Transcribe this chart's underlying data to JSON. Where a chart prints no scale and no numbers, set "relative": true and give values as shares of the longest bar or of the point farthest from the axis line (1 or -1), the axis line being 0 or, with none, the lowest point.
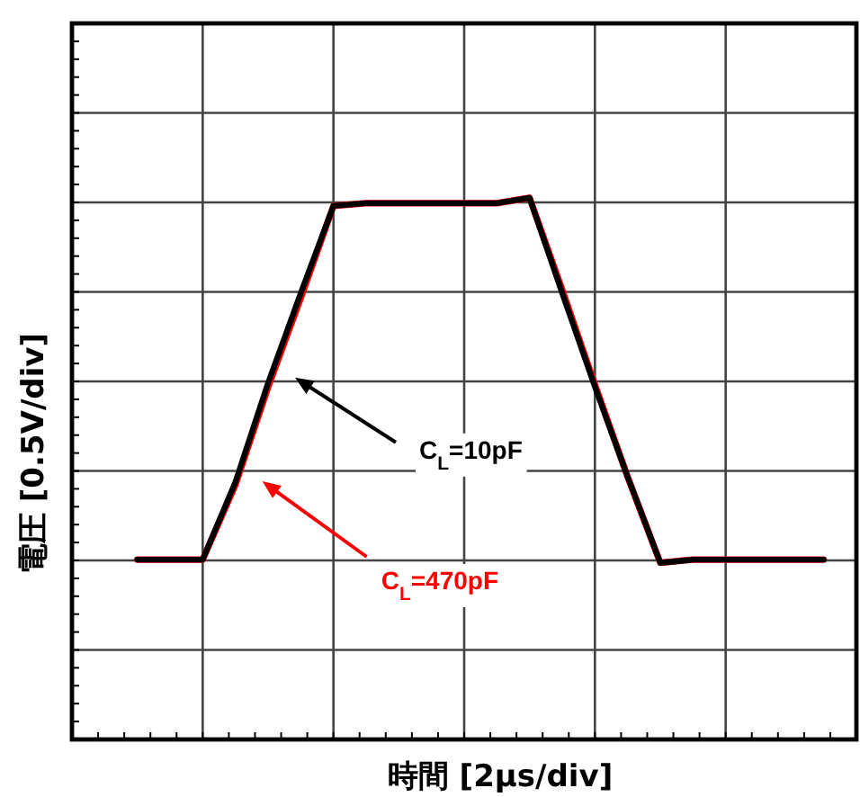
{
  "chart_data": {
    "type": "line",
    "relative": true,
    "xlabel": "時間 [2μs/div]",
    "ylabel": "電圧 [0.5V/div]",
    "grid": true,
    "legend": false,
    "marker": "none",
    "line_style": "solid",
    "categories": [
      null,
      null,
      null,
      null,
      null,
      null,
      null,
      null,
      null,
      null,
      null,
      null,
      null,
      null,
      null,
      null,
      null,
      null,
      null,
      null,
      null,
      null,
      null,
      null,
      null
    ],
    "series": [
      {
        "name": "C$_{L}$=470pF",
        "color": "#ff0000",
        "values": [
          null,
          null,
          0.332,
          0.332,
          0.332,
          0.47,
          0.65,
          0.815,
          0.985,
          0.99,
          0.99,
          0.99,
          0.99,
          0.99,
          1.0,
          0.83,
          0.655,
          0.485,
          0.326,
          0.332,
          0.332,
          0.332,
          0.332,
          0.332,
          null
        ]
      },
      {
        "name": "C$_{L}$=10pF",
        "color": "#000000",
        "values": [
          null,
          null,
          0.332,
          0.332,
          0.332,
          0.475,
          0.658,
          0.824,
          0.985,
          0.99,
          0.99,
          0.99,
          0.99,
          0.99,
          1.0,
          0.824,
          0.651,
          0.485,
          0.326,
          0.332,
          0.332,
          0.332,
          0.332,
          0.332,
          null
        ]
      }
    ]
  }
}
